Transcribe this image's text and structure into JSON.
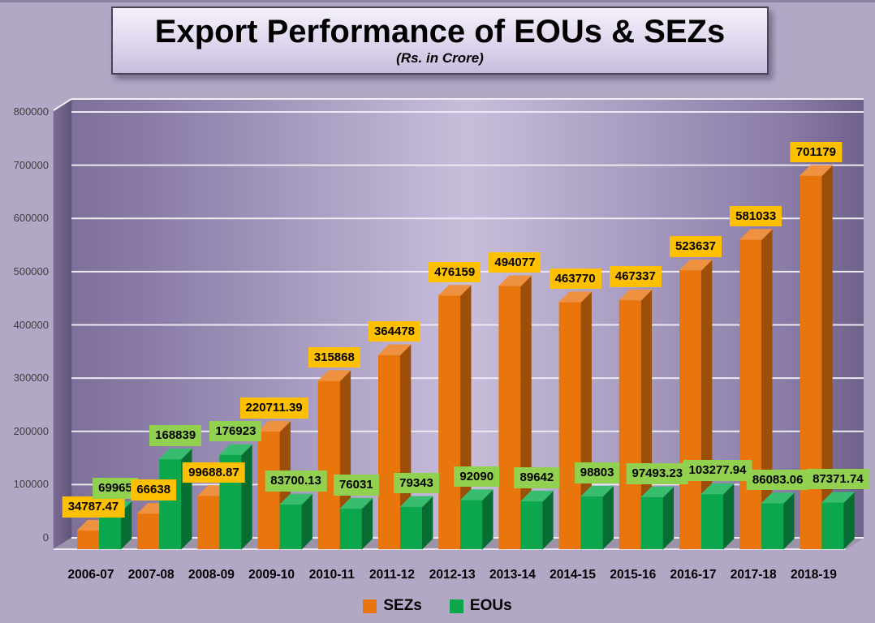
{
  "title_panel": {
    "title": "Export Performance of EOUs & SEZs",
    "subtitle": "(Rs. in Crore)"
  },
  "chart_data": {
    "type": "bar",
    "style": "3d-clustered-column",
    "title": "Export Performance of EOUs & SEZs",
    "subtitle": "(Rs. in Crore)",
    "categories": [
      "2006-07",
      "2007-08",
      "2008-09",
      "2009-10",
      "2010-11",
      "2011-12",
      "2012-13",
      "2013-14",
      "2014-15",
      "2015-16",
      "2016-17",
      "2017-18",
      "2018-19"
    ],
    "series": [
      {
        "name": "SEZs",
        "values": [
          34787.47,
          66638,
          99688.87,
          220711.39,
          315868,
          364478,
          476159,
          494077,
          463770,
          467337,
          523637,
          581033,
          701179
        ],
        "labels": [
          "34787.47",
          "66638",
          "99688.87",
          "220711.39",
          "315868",
          "364478",
          "476159",
          "494077",
          "463770",
          "467337",
          "523637",
          "581033",
          "701179"
        ],
        "front_color": "#E8760D",
        "side_color": "#9C4F08",
        "top_color": "#EE9140",
        "label_bg": "#FFC000"
      },
      {
        "name": "EOUs",
        "values": [
          69965,
          168839,
          176923,
          83700.13,
          76031,
          79343,
          92090,
          89642,
          98803,
          97493.23,
          103277.94,
          86083.06,
          87371.74
        ],
        "labels": [
          "69965",
          "168839",
          "176923",
          "83700.13",
          "76031",
          "79343",
          "92090",
          "89642",
          "98803",
          "97493.23",
          "103277.94",
          "86083.06",
          "87371.74"
        ],
        "front_color": "#0CA64D",
        "side_color": "#076D32",
        "top_color": "#38BD6F",
        "label_bg": "#92D050"
      }
    ],
    "ylim": [
      0,
      800000
    ],
    "ytick_step": 100000,
    "yticks": [
      "0",
      "100000",
      "200000",
      "300000",
      "400000",
      "500000",
      "600000",
      "700000",
      "800000"
    ],
    "grid": true,
    "legend_position": "bottom-center",
    "wall_colors": {
      "back_edge": "#7E7099",
      "back_center": "#C8BEDB",
      "left_wall": "#6D5F85",
      "floor": "#9C93A9",
      "gridline": "#ECE9F2"
    }
  }
}
